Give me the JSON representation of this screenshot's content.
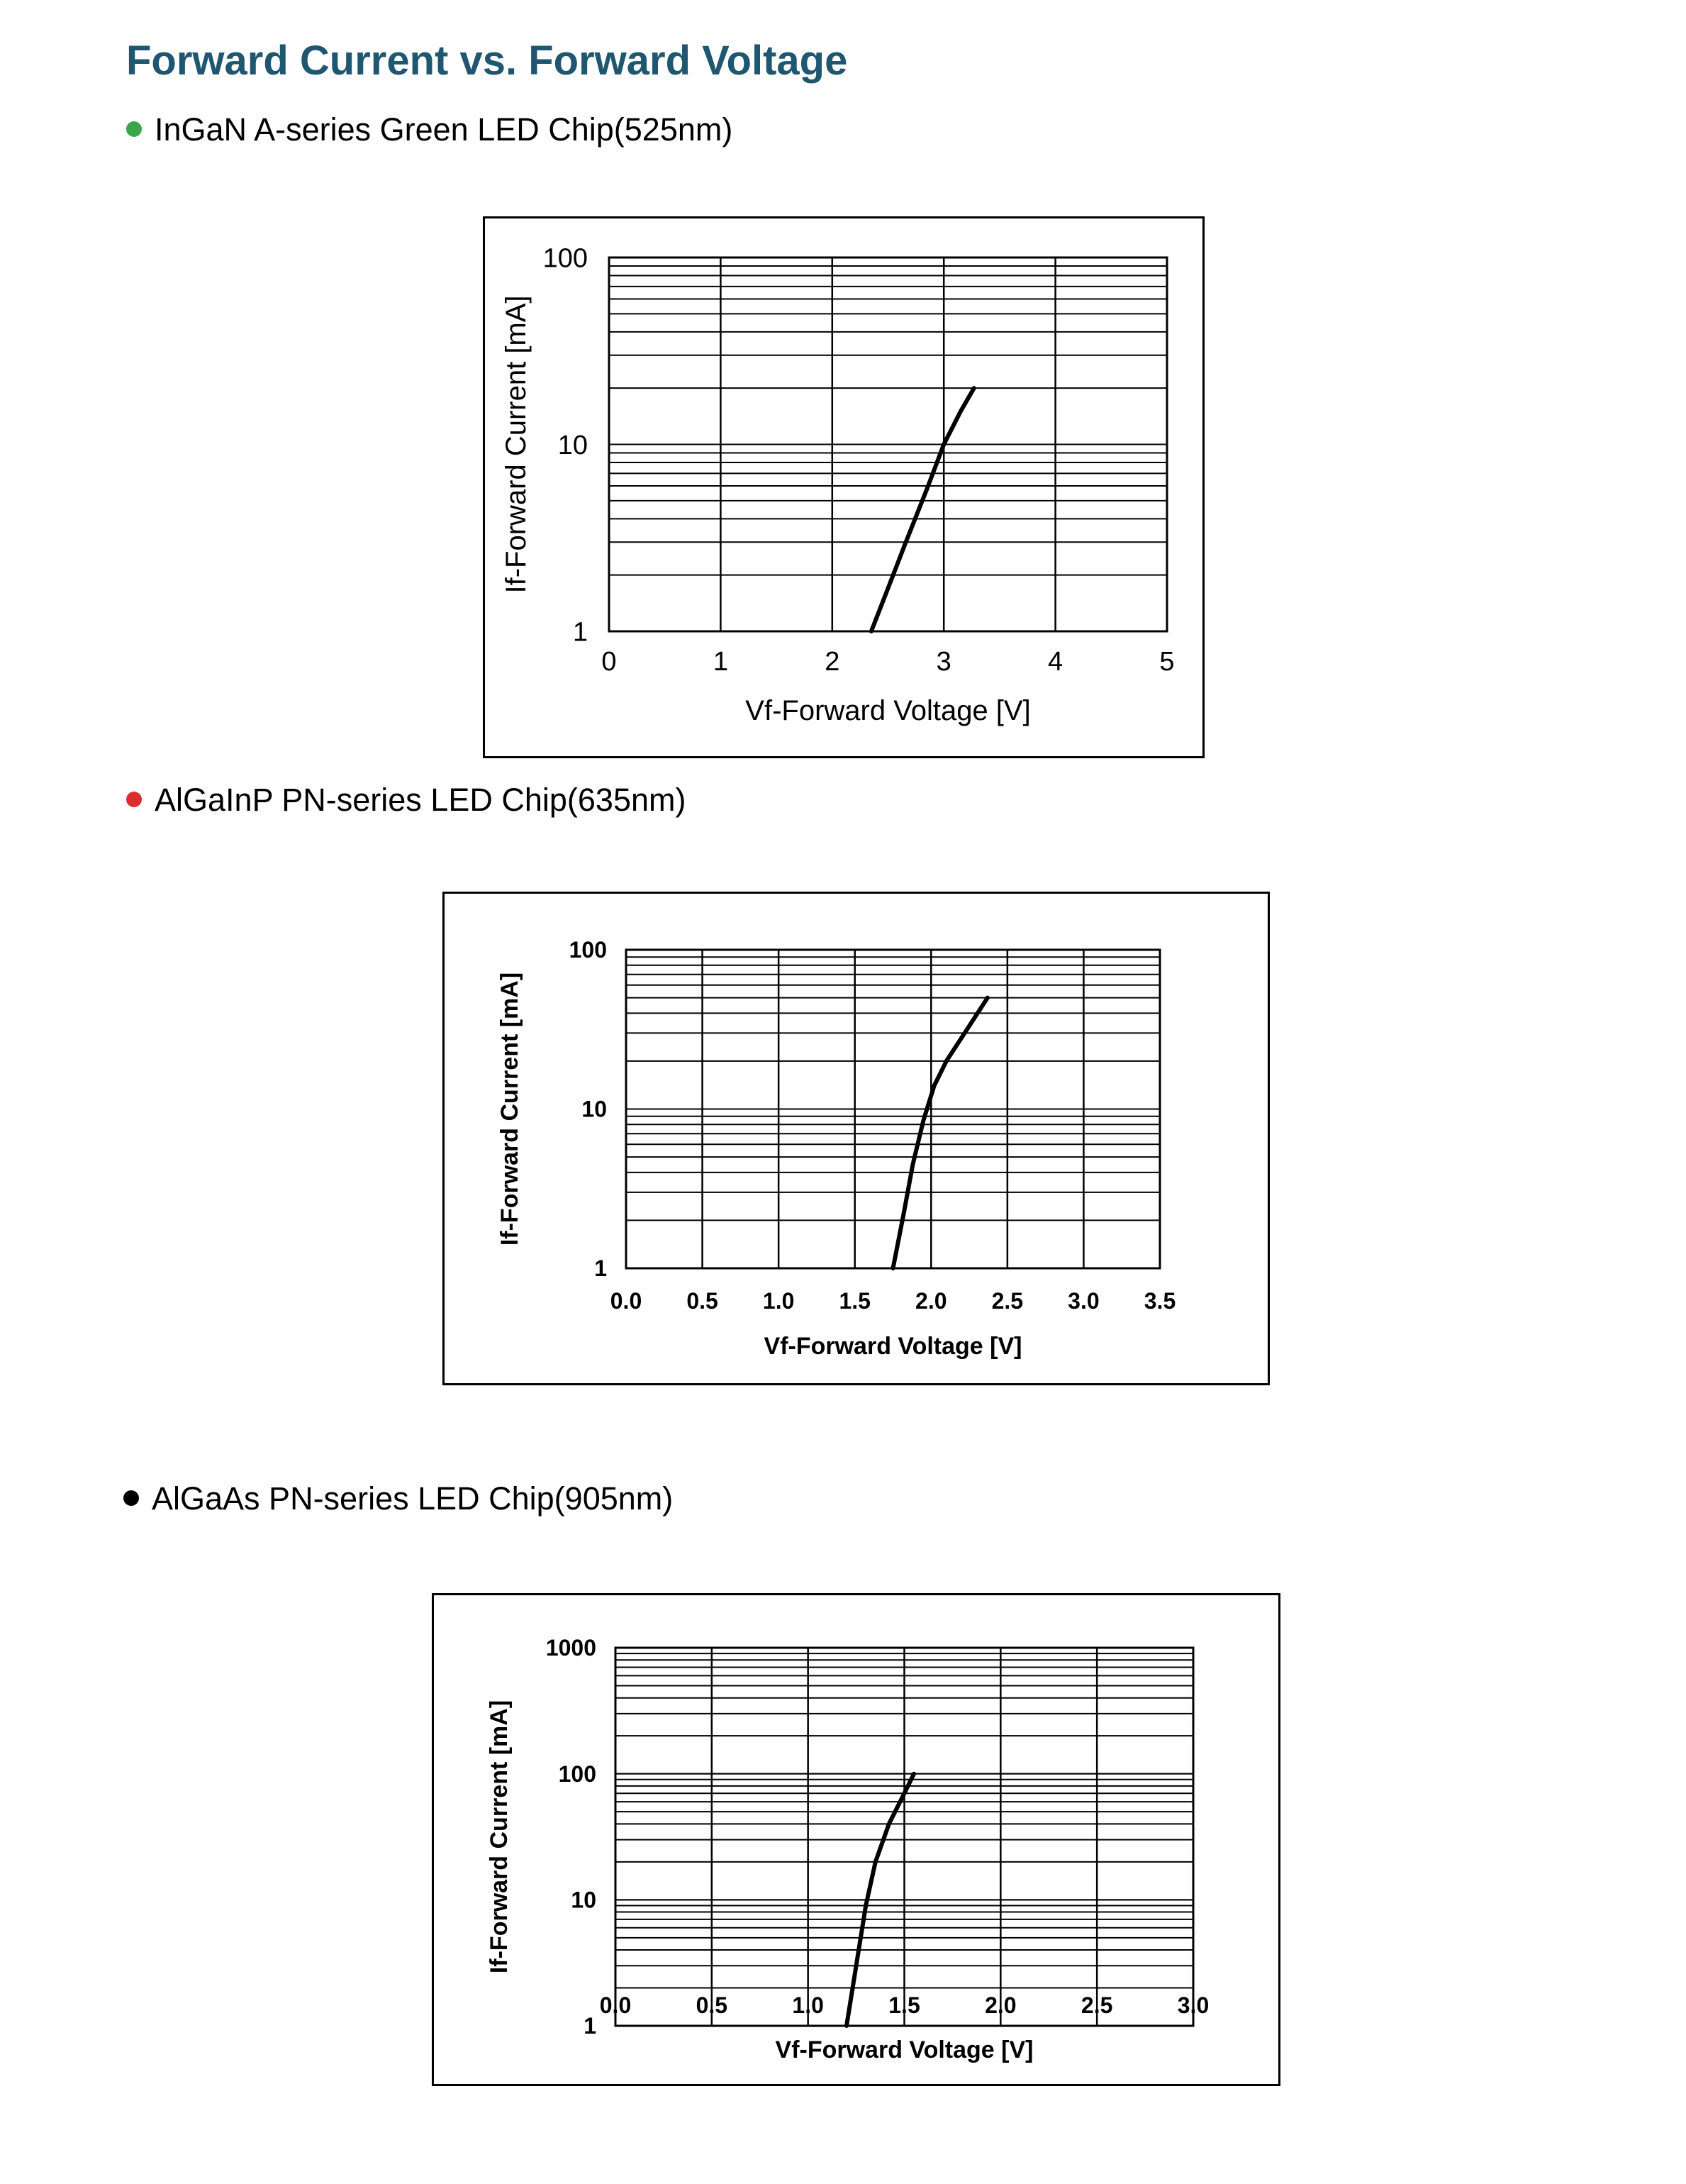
{
  "title": "Forward Current vs. Forward Voltage",
  "colors": {
    "title": "#1f5670",
    "bullet_green": "#3aa64a",
    "bullet_red": "#d9302c",
    "bullet_black": "#000000"
  },
  "sections": [
    {
      "label": "InGaN A-series Green LED Chip(525nm)",
      "bullet_color": "#3aa64a"
    },
    {
      "label": "AlGaInP PN-series LED Chip(635nm)",
      "bullet_color": "#d9302c"
    },
    {
      "label": "AlGaAs PN-series LED Chip(905nm)",
      "bullet_color": "#000000"
    }
  ],
  "chart_data": [
    {
      "type": "line",
      "xlabel": "Vf-Forward Voltage [V]",
      "ylabel": "If-Forward Current [mA]",
      "xlim": [
        0,
        5
      ],
      "ylim": [
        1,
        100
      ],
      "y_scale": "log",
      "x_ticks": [
        "0",
        "1",
        "2",
        "3",
        "4",
        "5"
      ],
      "y_ticks": [
        "1",
        "10",
        "100"
      ],
      "grid": true,
      "series": [
        {
          "x": [
            2.35,
            2.5,
            2.65,
            2.85,
            3.0,
            3.15,
            3.27
          ],
          "y": [
            1,
            1.7,
            2.9,
            5.8,
            10,
            15,
            20
          ]
        }
      ]
    },
    {
      "type": "line",
      "xlabel": "Vf-Forward Voltage [V]",
      "ylabel": "If-Forward Current [mA]",
      "xlim": [
        0,
        3.5
      ],
      "ylim": [
        1,
        100
      ],
      "y_scale": "log",
      "x_ticks": [
        "0.0",
        "0.5",
        "1.0",
        "1.5",
        "2.0",
        "2.5",
        "3.0",
        "3.5"
      ],
      "y_ticks": [
        "1",
        "10",
        "100"
      ],
      "grid": true,
      "series": [
        {
          "x": [
            1.75,
            1.82,
            1.88,
            1.95,
            2.02,
            2.1,
            2.22,
            2.37
          ],
          "y": [
            1,
            2.2,
            4.5,
            8.5,
            14,
            20,
            30,
            50
          ]
        }
      ]
    },
    {
      "type": "line",
      "xlabel": "Vf-Forward Voltage [V]",
      "ylabel": "If-Forward Current [mA]",
      "xlim": [
        0,
        3.0
      ],
      "ylim": [
        1,
        1000
      ],
      "y_scale": "log",
      "x_ticks": [
        "0.0",
        "0.5",
        "1.0",
        "1.5",
        "2.0",
        "2.5",
        "3.0"
      ],
      "y_ticks": [
        "1",
        "10",
        "100",
        "1000"
      ],
      "grid": true,
      "series": [
        {
          "x": [
            1.2,
            1.25,
            1.3,
            1.35,
            1.42,
            1.5,
            1.55
          ],
          "y": [
            1,
            3,
            9,
            20,
            40,
            70,
            100
          ]
        }
      ]
    }
  ]
}
